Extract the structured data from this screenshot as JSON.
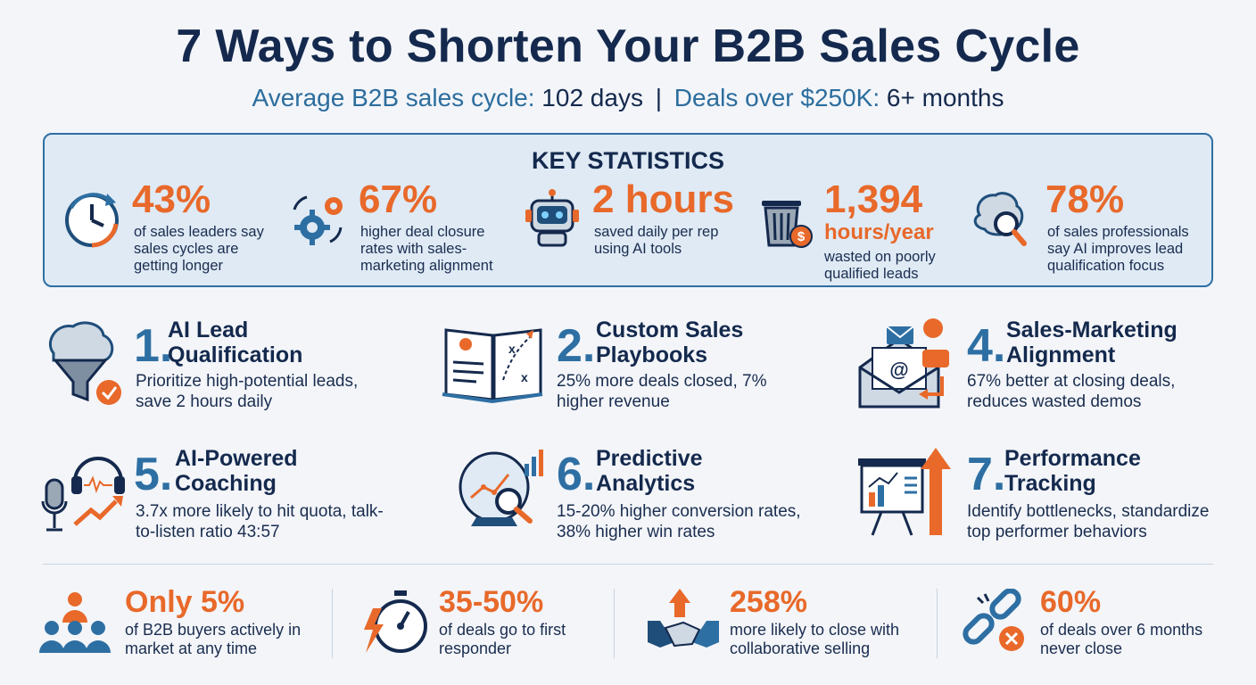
{
  "header": {
    "title": "7 Ways to Shorten Your B2B Sales Cycle",
    "subtitle_label1": "Average B2B sales cycle:",
    "subtitle_value1": "102 days",
    "subtitle_sep": "|",
    "subtitle_label2": "Deals over $250K:",
    "subtitle_value2": "6+ months"
  },
  "key_statistics": {
    "title": "KEY STATISTICS",
    "items": [
      {
        "icon": "clock-refresh-icon",
        "number": "43%",
        "text": "of sales leaders say sales cycles are getting longer"
      },
      {
        "icon": "gears-icon",
        "number": "67%",
        "text": "higher deal closure rates with sales-marketing alignment"
      },
      {
        "icon": "robot-icon",
        "number": "2 hours",
        "text": "saved daily per rep using AI tools"
      },
      {
        "icon": "trash-dollar-icon",
        "number": "1,394",
        "number_unit": "hours/year",
        "text": "wasted on poorly qualified leads"
      },
      {
        "icon": "brain-magnifier-icon",
        "number": "78%",
        "text": "of sales professionals say AI improves lead qualification focus"
      }
    ]
  },
  "ways": [
    {
      "number": "1.",
      "title": "AI Lead\nQualification",
      "text": "Prioritize high-potential leads, save 2 hours daily",
      "icon": "brain-funnel-icon"
    },
    {
      "number": "2.",
      "title": "Custom Sales\nPlaybooks",
      "text": "25% more deals closed, 7% higher revenue",
      "icon": "playbook-icon"
    },
    {
      "number": "4.",
      "title": "Sales-Marketing\nAlignment",
      "text": "67% better at closing deals, reduces wasted demos",
      "icon": "email-chat-icon"
    },
    {
      "number": "5.",
      "title": "AI-Powered\nCoaching",
      "text": "3.7x more likely to hit quota, talk-to-listen ratio 43:57",
      "icon": "headset-mic-icon"
    },
    {
      "number": "6.",
      "title": "Predictive\nAnalytics",
      "text": "15-20% higher conversion rates, 38% higher win rates",
      "icon": "crystal-ball-icon"
    },
    {
      "number": "7.",
      "title": "Performance\nTracking",
      "text": "Identify bottlenecks, standardize top performer behaviors",
      "icon": "presentation-board-icon"
    }
  ],
  "bottom_stats": [
    {
      "icon": "people-group-icon",
      "number": "Only 5%",
      "text": "of B2B buyers actively in market at any time"
    },
    {
      "icon": "stopwatch-icon",
      "number": "35-50%",
      "text": "of deals go to first responder"
    },
    {
      "icon": "handshake-icon",
      "number": "258%",
      "text": "more likely to close with collaborative selling"
    },
    {
      "icon": "broken-chain-icon",
      "number": "60%",
      "text": "of deals over 6 months never close"
    }
  ],
  "colors": {
    "navy": "#14294d",
    "blue": "#2e6fa3",
    "orange": "#e8692a",
    "panel": "#dfeaf5"
  }
}
